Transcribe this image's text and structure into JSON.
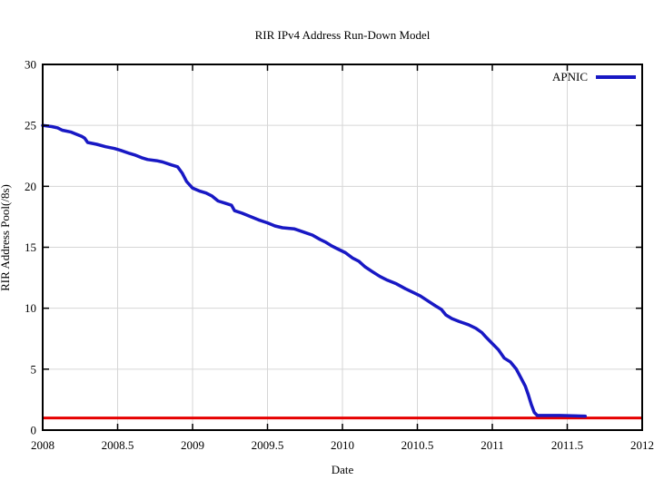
{
  "chart_data": {
    "type": "line",
    "title": "RIR IPv4 Address Run-Down Model",
    "xlabel": "Date",
    "ylabel": "RIR Address Pool(/8s)",
    "xlim": [
      2008,
      2012
    ],
    "ylim": [
      0,
      30
    ],
    "grid": true,
    "legend_position": "top-right-inside",
    "xticks": {
      "values": [
        2008,
        2008.5,
        2009,
        2009.5,
        2010,
        2010.5,
        2011,
        2011.5,
        2012
      ],
      "labels": [
        "2008",
        "2008.5",
        "2009",
        "2009.5",
        "2010",
        "2010.5",
        "2011",
        "2011.5",
        "2012"
      ]
    },
    "yticks": {
      "values": [
        0,
        5,
        10,
        15,
        20,
        25,
        30
      ],
      "labels": [
        "0",
        "5",
        "10",
        "15",
        "20",
        "25",
        "30"
      ]
    },
    "colors": {
      "series_blue": "#1818c4",
      "threshold_red": "#e60000",
      "grid": "#d6d6d6",
      "frame": "#000000",
      "background": "#ffffff"
    },
    "series": [
      {
        "name": "APNIC",
        "color": "#1818c4",
        "points": [
          [
            2008.0,
            25.0
          ],
          [
            2008.06,
            24.9
          ],
          [
            2008.1,
            24.8
          ],
          [
            2008.13,
            24.6
          ],
          [
            2008.19,
            24.45
          ],
          [
            2008.22,
            24.3
          ],
          [
            2008.26,
            24.1
          ],
          [
            2008.28,
            23.95
          ],
          [
            2008.3,
            23.6
          ],
          [
            2008.36,
            23.45
          ],
          [
            2008.42,
            23.25
          ],
          [
            2008.48,
            23.1
          ],
          [
            2008.52,
            22.95
          ],
          [
            2008.58,
            22.7
          ],
          [
            2008.62,
            22.55
          ],
          [
            2008.66,
            22.35
          ],
          [
            2008.7,
            22.2
          ],
          [
            2008.76,
            22.1
          ],
          [
            2008.8,
            22.0
          ],
          [
            2008.86,
            21.75
          ],
          [
            2008.9,
            21.6
          ],
          [
            2008.93,
            21.1
          ],
          [
            2008.96,
            20.4
          ],
          [
            2009.0,
            19.85
          ],
          [
            2009.05,
            19.6
          ],
          [
            2009.09,
            19.45
          ],
          [
            2009.13,
            19.2
          ],
          [
            2009.17,
            18.8
          ],
          [
            2009.22,
            18.6
          ],
          [
            2009.26,
            18.45
          ],
          [
            2009.28,
            18.0
          ],
          [
            2009.33,
            17.8
          ],
          [
            2009.38,
            17.55
          ],
          [
            2009.44,
            17.25
          ],
          [
            2009.5,
            17.0
          ],
          [
            2009.55,
            16.75
          ],
          [
            2009.6,
            16.6
          ],
          [
            2009.68,
            16.5
          ],
          [
            2009.74,
            16.25
          ],
          [
            2009.8,
            16.0
          ],
          [
            2009.85,
            15.65
          ],
          [
            2009.89,
            15.4
          ],
          [
            2009.93,
            15.1
          ],
          [
            2009.97,
            14.85
          ],
          [
            2010.02,
            14.55
          ],
          [
            2010.07,
            14.1
          ],
          [
            2010.11,
            13.85
          ],
          [
            2010.15,
            13.4
          ],
          [
            2010.2,
            13.0
          ],
          [
            2010.25,
            12.6
          ],
          [
            2010.3,
            12.3
          ],
          [
            2010.36,
            12.0
          ],
          [
            2010.42,
            11.6
          ],
          [
            2010.48,
            11.25
          ],
          [
            2010.52,
            11.0
          ],
          [
            2010.57,
            10.6
          ],
          [
            2010.62,
            10.2
          ],
          [
            2010.66,
            9.9
          ],
          [
            2010.69,
            9.45
          ],
          [
            2010.73,
            9.15
          ],
          [
            2010.78,
            8.9
          ],
          [
            2010.84,
            8.65
          ],
          [
            2010.89,
            8.35
          ],
          [
            2010.93,
            8.0
          ],
          [
            2010.96,
            7.6
          ],
          [
            2011.0,
            7.1
          ],
          [
            2011.04,
            6.6
          ],
          [
            2011.08,
            5.9
          ],
          [
            2011.12,
            5.6
          ],
          [
            2011.16,
            5.0
          ],
          [
            2011.19,
            4.3
          ],
          [
            2011.22,
            3.6
          ],
          [
            2011.24,
            2.9
          ],
          [
            2011.26,
            2.1
          ],
          [
            2011.28,
            1.45
          ],
          [
            2011.3,
            1.2
          ],
          [
            2011.45,
            1.2
          ],
          [
            2011.62,
            1.15
          ]
        ]
      }
    ],
    "threshold_line": {
      "y": 1,
      "color": "#e60000"
    }
  }
}
